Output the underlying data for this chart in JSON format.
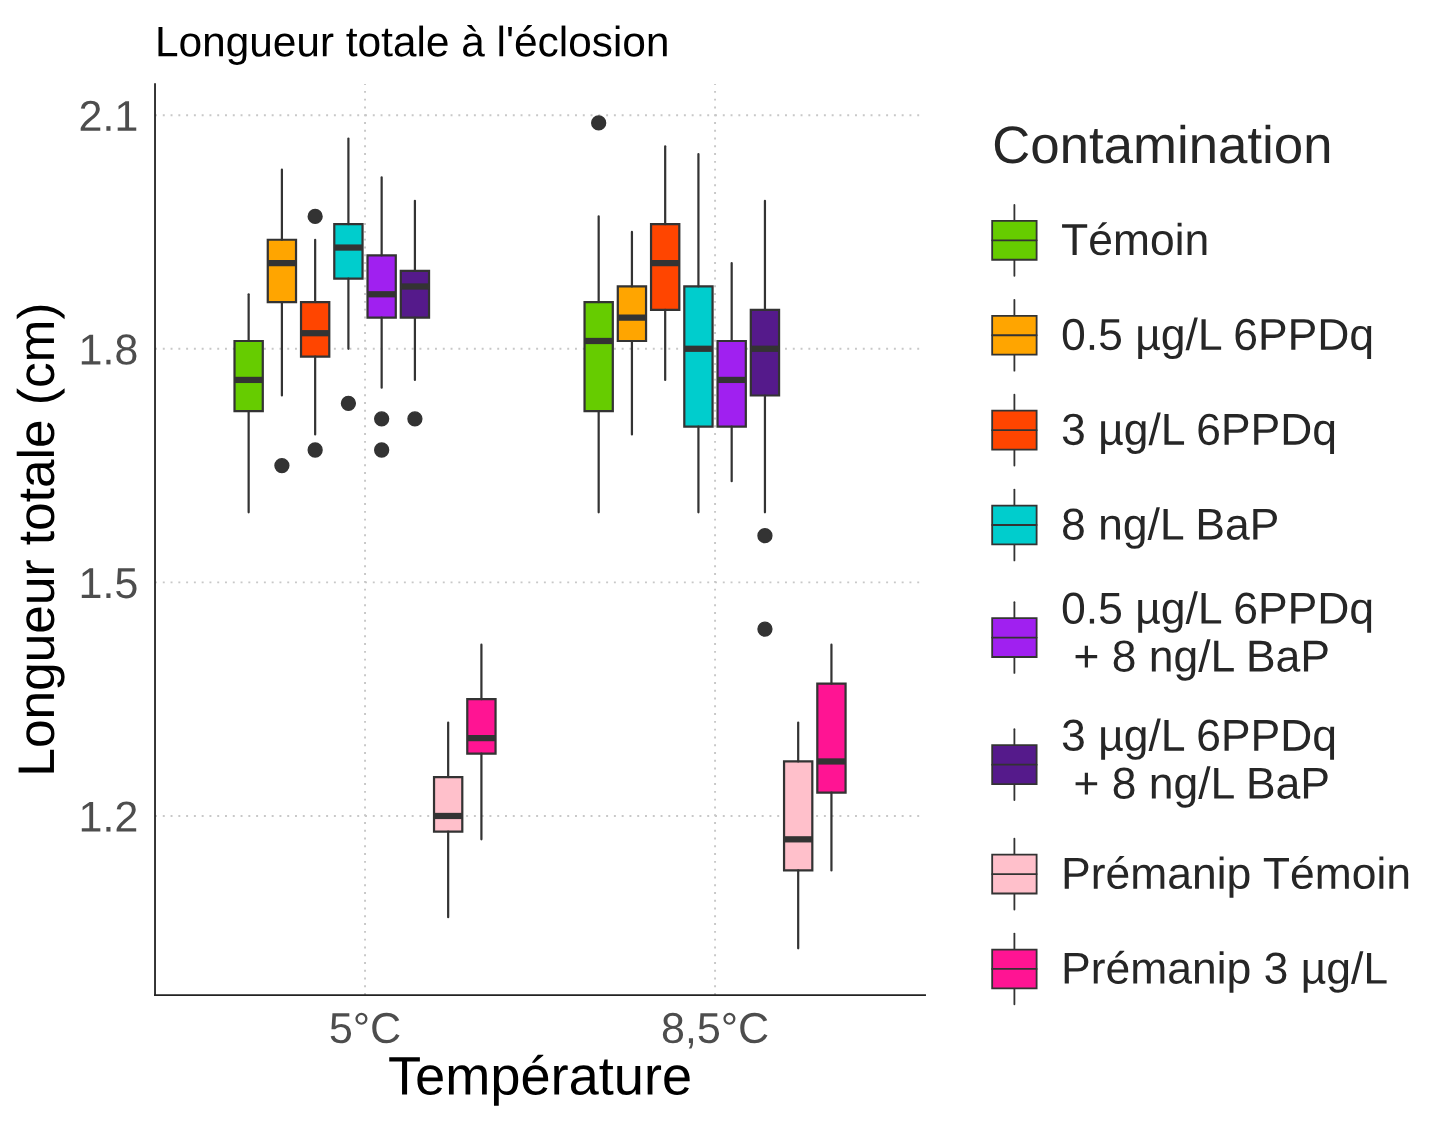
{
  "chart_data": {
    "type": "box",
    "title": "Longueur totale à l'éclosion",
    "xlabel": "Température",
    "ylabel": "Longueur totale (cm)",
    "legend_title": "Contamination",
    "categories": [
      "5°C",
      "8,5°C"
    ],
    "series": [
      {
        "name": "Témoin",
        "color": "#66cc00",
        "boxes": [
          {
            "low": 1.59,
            "q1": 1.72,
            "median": 1.76,
            "q3": 1.81,
            "high": 1.87
          },
          {
            "low": 1.59,
            "q1": 1.72,
            "median": 1.81,
            "q3": 1.86,
            "high": 1.97,
            "outliers": [
              2.09
            ]
          }
        ]
      },
      {
        "name": "0.5 µg/L 6PPDq",
        "color": "#ffa500",
        "boxes": [
          {
            "low": 1.74,
            "q1": 1.86,
            "median": 1.91,
            "q3": 1.94,
            "high": 2.03,
            "outliers": [
              1.65
            ]
          },
          {
            "low": 1.69,
            "q1": 1.81,
            "median": 1.84,
            "q3": 1.88,
            "high": 1.95
          }
        ]
      },
      {
        "name": "3 µg/L 6PPDq",
        "color": "#ff4500",
        "boxes": [
          {
            "low": 1.69,
            "q1": 1.79,
            "median": 1.82,
            "q3": 1.86,
            "high": 1.94,
            "outliers": [
              1.97,
              1.67
            ]
          },
          {
            "low": 1.76,
            "q1": 1.85,
            "median": 1.91,
            "q3": 1.96,
            "high": 2.06
          }
        ]
      },
      {
        "name": "8 ng/L BaP",
        "color": "#00cdcd",
        "boxes": [
          {
            "low": 1.8,
            "q1": 1.89,
            "median": 1.93,
            "q3": 1.96,
            "high": 2.07,
            "outliers": [
              1.73
            ]
          },
          {
            "low": 1.59,
            "q1": 1.7,
            "median": 1.8,
            "q3": 1.88,
            "high": 2.05
          }
        ]
      },
      {
        "name": "0.5 µg/L 6PPDq\n + 8 ng/L BaP",
        "color": "#a020f0",
        "boxes": [
          {
            "low": 1.75,
            "q1": 1.84,
            "median": 1.87,
            "q3": 1.92,
            "high": 2.02,
            "outliers": [
              1.71,
              1.67
            ]
          },
          {
            "low": 1.63,
            "q1": 1.7,
            "median": 1.76,
            "q3": 1.81,
            "high": 1.91
          }
        ]
      },
      {
        "name": "3 µg/L 6PPDq\n + 8 ng/L BaP",
        "color": "#551a8b",
        "boxes": [
          {
            "low": 1.76,
            "q1": 1.84,
            "median": 1.88,
            "q3": 1.9,
            "high": 1.99,
            "outliers": [
              1.71
            ]
          },
          {
            "low": 1.59,
            "q1": 1.74,
            "median": 1.8,
            "q3": 1.85,
            "high": 1.99,
            "outliers": [
              1.56,
              1.44
            ]
          }
        ]
      },
      {
        "name": "Prémanip Témoin",
        "color": "#ffc0cb",
        "boxes": [
          {
            "low": 1.07,
            "q1": 1.18,
            "median": 1.2,
            "q3": 1.25,
            "high": 1.32
          },
          {
            "low": 1.03,
            "q1": 1.13,
            "median": 1.17,
            "q3": 1.27,
            "high": 1.32
          }
        ]
      },
      {
        "name": "Prémanip 3 µg/L",
        "color": "#ff1493",
        "boxes": [
          {
            "low": 1.17,
            "q1": 1.28,
            "median": 1.3,
            "q3": 1.35,
            "high": 1.42
          },
          {
            "low": 1.13,
            "q1": 1.23,
            "median": 1.27,
            "q3": 1.37,
            "high": 1.42
          }
        ]
      }
    ],
    "ylim": [
      0.97,
      2.14
    ],
    "yticks": [
      1.2,
      1.5,
      1.8,
      2.1
    ],
    "grid": true,
    "legend": "right",
    "marker": "circle"
  }
}
